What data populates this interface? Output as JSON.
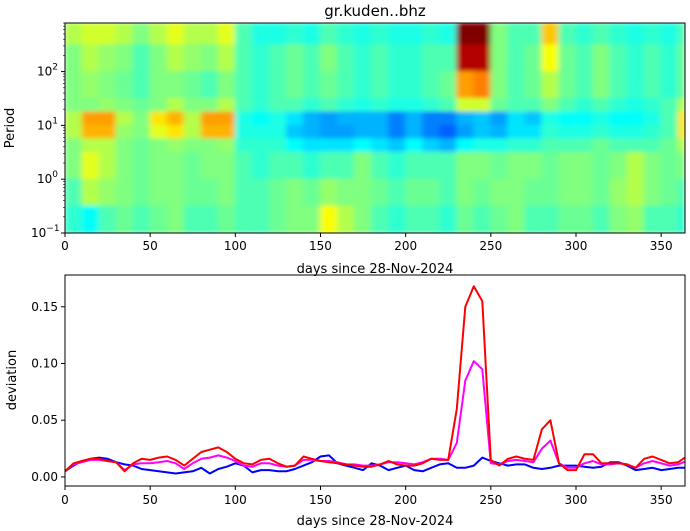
{
  "chart_data": [
    {
      "type": "heatmap",
      "title": "gr.kuden..bhz",
      "xlabel": "days since 28-Nov-2024",
      "ylabel": "Period",
      "xlim": [
        0,
        364
      ],
      "ylim": [
        0.1,
        800
      ],
      "yscale": "log",
      "colormap": "jet",
      "xticks": [
        0,
        50,
        100,
        150,
        200,
        250,
        300,
        350
      ],
      "yticks": [
        {
          "base": "10",
          "exp": "−1",
          "value": 0.1
        },
        {
          "base": "10",
          "exp": "0",
          "value": 1
        },
        {
          "base": "10",
          "exp": "1",
          "value": 10
        },
        {
          "base": "10",
          "exp": "2",
          "value": 100
        }
      ],
      "x_edges": [
        0,
        10,
        20,
        30,
        40,
        50,
        60,
        70,
        80,
        90,
        100,
        110,
        120,
        130,
        140,
        150,
        160,
        170,
        180,
        190,
        200,
        210,
        220,
        230,
        240,
        250,
        260,
        270,
        280,
        290,
        300,
        310,
        320,
        330,
        340,
        350,
        360,
        364
      ],
      "log10_period_edges": [
        2.9,
        2.5,
        2.0,
        1.5,
        1.25,
        1.0,
        0.75,
        0.5,
        0.0,
        -0.5,
        -1.0
      ],
      "values": [
        [
          0.55,
          0.58,
          0.58,
          0.55,
          0.5,
          0.55,
          0.6,
          0.55,
          0.55,
          0.6,
          0.45,
          0.4,
          0.4,
          0.42,
          0.4,
          0.45,
          0.42,
          0.4,
          0.42,
          0.4,
          0.4,
          0.42,
          0.4,
          1.0,
          1.0,
          0.5,
          0.45,
          0.45,
          0.68,
          0.45,
          0.42,
          0.45,
          0.42,
          0.4,
          0.42,
          0.4,
          0.45
        ],
        [
          0.5,
          0.55,
          0.52,
          0.5,
          0.45,
          0.5,
          0.55,
          0.52,
          0.5,
          0.55,
          0.45,
          0.42,
          0.45,
          0.48,
          0.45,
          0.5,
          0.45,
          0.42,
          0.45,
          0.42,
          0.42,
          0.45,
          0.45,
          0.95,
          0.95,
          0.5,
          0.45,
          0.48,
          0.62,
          0.48,
          0.45,
          0.5,
          0.45,
          0.42,
          0.45,
          0.42,
          0.48
        ],
        [
          0.5,
          0.52,
          0.5,
          0.48,
          0.45,
          0.5,
          0.5,
          0.48,
          0.45,
          0.5,
          0.45,
          0.42,
          0.45,
          0.48,
          0.45,
          0.48,
          0.45,
          0.42,
          0.45,
          0.42,
          0.42,
          0.45,
          0.48,
          0.72,
          0.75,
          0.5,
          0.45,
          0.48,
          0.55,
          0.48,
          0.45,
          0.5,
          0.45,
          0.42,
          0.45,
          0.42,
          0.48
        ],
        [
          0.5,
          0.5,
          0.52,
          0.5,
          0.48,
          0.5,
          0.55,
          0.5,
          0.5,
          0.55,
          0.45,
          0.42,
          0.45,
          0.45,
          0.42,
          0.45,
          0.42,
          0.4,
          0.42,
          0.4,
          0.4,
          0.42,
          0.45,
          0.58,
          0.58,
          0.48,
          0.45,
          0.45,
          0.5,
          0.45,
          0.42,
          0.45,
          0.42,
          0.4,
          0.42,
          0.45,
          0.55
        ],
        [
          0.55,
          0.72,
          0.72,
          0.55,
          0.5,
          0.65,
          0.7,
          0.55,
          0.72,
          0.72,
          0.4,
          0.38,
          0.4,
          0.35,
          0.3,
          0.28,
          0.3,
          0.3,
          0.3,
          0.25,
          0.3,
          0.25,
          0.25,
          0.3,
          0.32,
          0.28,
          0.35,
          0.32,
          0.4,
          0.38,
          0.38,
          0.4,
          0.38,
          0.38,
          0.4,
          0.45,
          0.65
        ],
        [
          0.55,
          0.7,
          0.7,
          0.52,
          0.5,
          0.6,
          0.65,
          0.55,
          0.7,
          0.7,
          0.4,
          0.4,
          0.4,
          0.32,
          0.3,
          0.28,
          0.28,
          0.3,
          0.3,
          0.25,
          0.3,
          0.25,
          0.22,
          0.28,
          0.32,
          0.3,
          0.35,
          0.35,
          0.42,
          0.4,
          0.4,
          0.42,
          0.4,
          0.4,
          0.42,
          0.45,
          0.65
        ],
        [
          0.5,
          0.55,
          0.55,
          0.5,
          0.48,
          0.5,
          0.52,
          0.5,
          0.5,
          0.52,
          0.42,
          0.42,
          0.42,
          0.38,
          0.35,
          0.35,
          0.35,
          0.38,
          0.35,
          0.32,
          0.38,
          0.33,
          0.3,
          0.38,
          0.4,
          0.4,
          0.42,
          0.42,
          0.45,
          0.45,
          0.45,
          0.48,
          0.45,
          0.45,
          0.45,
          0.48,
          0.55
        ],
        [
          0.5,
          0.6,
          0.55,
          0.5,
          0.48,
          0.5,
          0.5,
          0.48,
          0.5,
          0.5,
          0.45,
          0.42,
          0.45,
          0.45,
          0.42,
          0.45,
          0.45,
          0.5,
          0.45,
          0.42,
          0.45,
          0.45,
          0.45,
          0.5,
          0.5,
          0.48,
          0.5,
          0.5,
          0.48,
          0.5,
          0.5,
          0.48,
          0.5,
          0.55,
          0.5,
          0.48,
          0.5
        ],
        [
          0.45,
          0.55,
          0.52,
          0.5,
          0.48,
          0.5,
          0.5,
          0.48,
          0.48,
          0.5,
          0.45,
          0.45,
          0.48,
          0.5,
          0.48,
          0.52,
          0.5,
          0.5,
          0.48,
          0.45,
          0.48,
          0.48,
          0.45,
          0.5,
          0.48,
          0.5,
          0.5,
          0.48,
          0.48,
          0.5,
          0.5,
          0.48,
          0.52,
          0.55,
          0.5,
          0.48,
          0.45
        ],
        [
          0.42,
          0.38,
          0.45,
          0.48,
          0.45,
          0.48,
          0.5,
          0.45,
          0.45,
          0.48,
          0.45,
          0.45,
          0.48,
          0.5,
          0.5,
          0.62,
          0.55,
          0.5,
          0.45,
          0.42,
          0.45,
          0.45,
          0.42,
          0.48,
          0.45,
          0.48,
          0.5,
          0.45,
          0.45,
          0.48,
          0.48,
          0.45,
          0.5,
          0.52,
          0.45,
          0.45,
          0.42
        ]
      ]
    },
    {
      "type": "line",
      "xlabel": "days since 28-Nov-2024",
      "ylabel": "deviation",
      "xlim": [
        0,
        364
      ],
      "ylim": [
        -0.008,
        0.178
      ],
      "xticks": [
        0,
        50,
        100,
        150,
        200,
        250,
        300,
        350
      ],
      "yticks": [
        {
          "label": "0.00",
          "value": 0
        },
        {
          "label": "0.05",
          "value": 0.05
        },
        {
          "label": "0.10",
          "value": 0.1
        },
        {
          "label": "0.15",
          "value": 0.15
        }
      ],
      "x_start": 0,
      "x_step": 5,
      "series": [
        {
          "color": "#0000ff",
          "values": [
            0.005,
            0.01,
            0.014,
            0.016,
            0.017,
            0.016,
            0.013,
            0.011,
            0.01,
            0.007,
            0.006,
            0.005,
            0.004,
            0.003,
            0.004,
            0.005,
            0.008,
            0.003,
            0.007,
            0.009,
            0.012,
            0.01,
            0.004,
            0.006,
            0.006,
            0.005,
            0.005,
            0.007,
            0.01,
            0.013,
            0.018,
            0.019,
            0.012,
            0.01,
            0.008,
            0.006,
            0.012,
            0.01,
            0.006,
            0.008,
            0.01,
            0.006,
            0.005,
            0.008,
            0.011,
            0.012,
            0.008,
            0.008,
            0.01,
            0.017,
            0.014,
            0.012,
            0.01,
            0.011,
            0.011,
            0.008,
            0.007,
            0.008,
            0.01,
            0.01,
            0.01,
            0.009,
            0.008,
            0.009,
            0.013,
            0.013,
            0.01,
            0.006,
            0.007,
            0.008,
            0.006,
            0.007,
            0.008,
            0.008
          ]
        },
        {
          "color": "#ff00ff",
          "values": [
            0.005,
            0.011,
            0.013,
            0.015,
            0.015,
            0.014,
            0.013,
            0.006,
            0.011,
            0.012,
            0.012,
            0.013,
            0.014,
            0.012,
            0.007,
            0.012,
            0.016,
            0.017,
            0.019,
            0.017,
            0.014,
            0.01,
            0.009,
            0.012,
            0.012,
            0.01,
            0.009,
            0.01,
            0.015,
            0.015,
            0.014,
            0.014,
            0.013,
            0.011,
            0.011,
            0.01,
            0.01,
            0.011,
            0.013,
            0.013,
            0.012,
            0.011,
            0.013,
            0.016,
            0.016,
            0.015,
            0.03,
            0.085,
            0.102,
            0.095,
            0.012,
            0.011,
            0.014,
            0.015,
            0.014,
            0.013,
            0.025,
            0.032,
            0.012,
            0.008,
            0.008,
            0.012,
            0.014,
            0.011,
            0.011,
            0.012,
            0.011,
            0.008,
            0.012,
            0.014,
            0.012,
            0.01,
            0.011,
            0.014
          ]
        },
        {
          "color": "#ff0000",
          "values": [
            0.005,
            0.012,
            0.014,
            0.016,
            0.016,
            0.014,
            0.013,
            0.005,
            0.012,
            0.016,
            0.015,
            0.017,
            0.018,
            0.015,
            0.01,
            0.016,
            0.022,
            0.024,
            0.026,
            0.022,
            0.016,
            0.012,
            0.011,
            0.015,
            0.016,
            0.012,
            0.009,
            0.01,
            0.018,
            0.016,
            0.014,
            0.013,
            0.012,
            0.011,
            0.01,
            0.009,
            0.009,
            0.011,
            0.014,
            0.011,
            0.01,
            0.01,
            0.012,
            0.016,
            0.015,
            0.015,
            0.06,
            0.15,
            0.168,
            0.155,
            0.015,
            0.01,
            0.016,
            0.018,
            0.016,
            0.015,
            0.042,
            0.05,
            0.012,
            0.006,
            0.006,
            0.02,
            0.02,
            0.012,
            0.012,
            0.012,
            0.011,
            0.008,
            0.016,
            0.018,
            0.015,
            0.012,
            0.013,
            0.018
          ]
        }
      ]
    }
  ]
}
